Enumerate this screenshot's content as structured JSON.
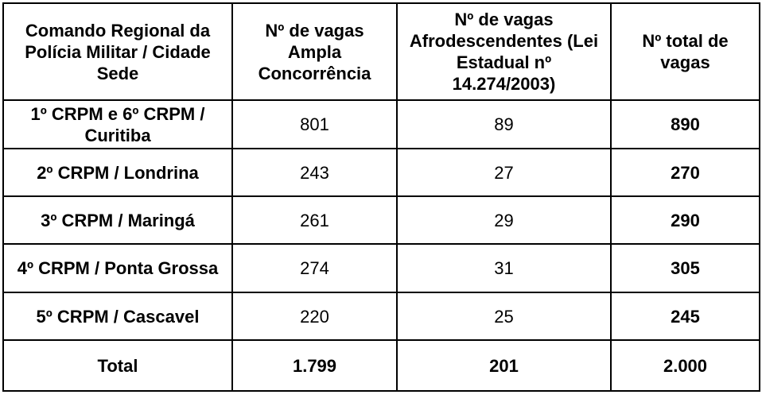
{
  "headers": [
    "Comando Regional da Polícia Militar / Cidade Sede",
    "Nº de vagas Ampla Concorrência",
    "Nº de vagas Afrodescendentes (Lei Estadual nº 14.274/2003)",
    "Nº total de vagas"
  ],
  "rows": [
    {
      "label": "1º CRPM e 6º CRPM / Curitiba",
      "ampla": "801",
      "afro": "89",
      "total": "890"
    },
    {
      "label": "2º CRPM / Londrina",
      "ampla": "243",
      "afro": "27",
      "total": "270"
    },
    {
      "label": "3º CRPM / Maringá",
      "ampla": "261",
      "afro": "29",
      "total": "290"
    },
    {
      "label": "4º CRPM / Ponta Grossa",
      "ampla": "274",
      "afro": "31",
      "total": "305"
    },
    {
      "label": "5º CRPM / Cascavel",
      "ampla": "220",
      "afro": "25",
      "total": "245"
    }
  ],
  "footer": {
    "label": "Total",
    "ampla": "1.799",
    "afro": "201",
    "total": "2.000"
  }
}
